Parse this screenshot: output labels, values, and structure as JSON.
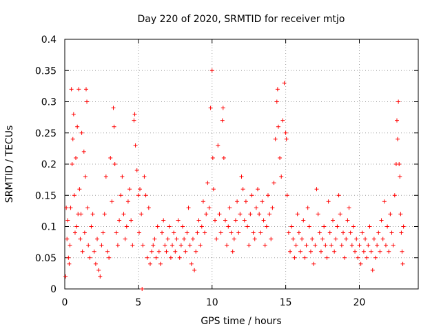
{
  "chart_data": {
    "type": "scatter",
    "title": "Day 220 of 2020, SRMTID for receiver mtjo",
    "xlabel": "GPS time / hours",
    "ylabel": "SRMTID / TECUs",
    "xlim": [
      0,
      24
    ],
    "ylim": [
      0,
      0.4
    ],
    "xticks": [
      0,
      5,
      10,
      15,
      20
    ],
    "yticks": [
      0,
      0.05,
      0.1,
      0.15,
      0.2,
      0.25,
      0.3,
      0.35,
      0.4
    ],
    "xtick_labels": [
      "0",
      "5",
      "10",
      "15",
      "20"
    ],
    "ytick_labels": [
      "0",
      "0.05",
      "0.1",
      "0.15",
      "0.2",
      "0.25",
      "0.3",
      "0.35",
      "0.4"
    ],
    "grid": true,
    "marker": "+",
    "color": "#ff0000",
    "series": [
      {
        "name": "SRMTID",
        "points": [
          [
            0.05,
            0.02
          ],
          [
            0.1,
            0.13
          ],
          [
            0.15,
            0.08
          ],
          [
            0.2,
            0.11
          ],
          [
            0.25,
            0.05
          ],
          [
            0.3,
            0.04
          ],
          [
            0.35,
            0.07
          ],
          [
            0.4,
            0.13
          ],
          [
            0.45,
            0.32
          ],
          [
            0.5,
            0.2
          ],
          [
            0.55,
            0.24
          ],
          [
            0.6,
            0.28
          ],
          [
            0.65,
            0.15
          ],
          [
            0.7,
            0.09
          ],
          [
            0.75,
            0.21
          ],
          [
            0.8,
            0.1
          ],
          [
            0.85,
            0.26
          ],
          [
            0.9,
            0.12
          ],
          [
            0.95,
            0.32
          ],
          [
            1.0,
            0.16
          ],
          [
            1.05,
            0.08
          ],
          [
            1.1,
            0.12
          ],
          [
            1.15,
            0.25
          ],
          [
            1.2,
            0.06
          ],
          [
            1.3,
            0.22
          ],
          [
            1.35,
            0.09
          ],
          [
            1.4,
            0.18
          ],
          [
            1.45,
            0.32
          ],
          [
            1.5,
            0.3
          ],
          [
            1.55,
            0.13
          ],
          [
            1.6,
            0.07
          ],
          [
            1.7,
            0.05
          ],
          [
            1.8,
            0.1
          ],
          [
            1.9,
            0.12
          ],
          [
            2.0,
            0.06
          ],
          [
            2.1,
            0.04
          ],
          [
            2.2,
            0.08
          ],
          [
            2.3,
            0.03
          ],
          [
            2.4,
            0.02
          ],
          [
            2.5,
            0.07
          ],
          [
            2.6,
            0.09
          ],
          [
            2.7,
            0.12
          ],
          [
            2.8,
            0.18
          ],
          [
            2.9,
            0.06
          ],
          [
            3.0,
            0.05
          ],
          [
            3.1,
            0.21
          ],
          [
            3.2,
            0.14
          ],
          [
            3.3,
            0.29
          ],
          [
            3.35,
            0.26
          ],
          [
            3.4,
            0.2
          ],
          [
            3.5,
            0.09
          ],
          [
            3.6,
            0.07
          ],
          [
            3.7,
            0.11
          ],
          [
            3.8,
            0.15
          ],
          [
            3.9,
            0.18
          ],
          [
            4.0,
            0.12
          ],
          [
            4.1,
            0.08
          ],
          [
            4.2,
            0.1
          ],
          [
            4.3,
            0.14
          ],
          [
            4.4,
            0.16
          ],
          [
            4.5,
            0.11
          ],
          [
            4.6,
            0.07
          ],
          [
            4.7,
            0.27
          ],
          [
            4.75,
            0.28
          ],
          [
            4.8,
            0.23
          ],
          [
            4.9,
            0.19
          ],
          [
            5.0,
            0.15
          ],
          [
            5.05,
            0.09
          ],
          [
            5.1,
            0.16
          ],
          [
            5.2,
            0.12
          ],
          [
            5.25,
            0.0
          ],
          [
            5.3,
            0.07
          ],
          [
            5.4,
            0.18
          ],
          [
            5.5,
            0.15
          ],
          [
            5.6,
            0.05
          ],
          [
            5.7,
            0.13
          ],
          [
            5.8,
            0.04
          ],
          [
            5.9,
            0.06
          ],
          [
            6.0,
            0.07
          ],
          [
            6.1,
            0.08
          ],
          [
            6.2,
            0.05
          ],
          [
            6.3,
            0.1
          ],
          [
            6.4,
            0.06
          ],
          [
            6.5,
            0.04
          ],
          [
            6.6,
            0.09
          ],
          [
            6.7,
            0.11
          ],
          [
            6.8,
            0.07
          ],
          [
            6.9,
            0.06
          ],
          [
            7.0,
            0.08
          ],
          [
            7.1,
            0.1
          ],
          [
            7.2,
            0.05
          ],
          [
            7.3,
            0.07
          ],
          [
            7.4,
            0.09
          ],
          [
            7.5,
            0.06
          ],
          [
            7.6,
            0.08
          ],
          [
            7.7,
            0.11
          ],
          [
            7.8,
            0.05
          ],
          [
            7.9,
            0.07
          ],
          [
            8.0,
            0.1
          ],
          [
            8.1,
            0.08
          ],
          [
            8.2,
            0.06
          ],
          [
            8.3,
            0.09
          ],
          [
            8.4,
            0.13
          ],
          [
            8.5,
            0.07
          ],
          [
            8.6,
            0.04
          ],
          [
            8.7,
            0.08
          ],
          [
            8.8,
            0.03
          ],
          [
            8.9,
            0.06
          ],
          [
            9.0,
            0.09
          ],
          [
            9.1,
            0.11
          ],
          [
            9.2,
            0.07
          ],
          [
            9.3,
            0.1
          ],
          [
            9.4,
            0.14
          ],
          [
            9.5,
            0.09
          ],
          [
            9.6,
            0.12
          ],
          [
            9.7,
            0.17
          ],
          [
            9.8,
            0.13
          ],
          [
            9.9,
            0.29
          ],
          [
            10.0,
            0.35
          ],
          [
            10.05,
            0.21
          ],
          [
            10.1,
            0.16
          ],
          [
            10.2,
            0.11
          ],
          [
            10.3,
            0.08
          ],
          [
            10.4,
            0.23
          ],
          [
            10.5,
            0.12
          ],
          [
            10.6,
            0.09
          ],
          [
            10.7,
            0.27
          ],
          [
            10.75,
            0.29
          ],
          [
            10.8,
            0.21
          ],
          [
            10.9,
            0.11
          ],
          [
            11.0,
            0.07
          ],
          [
            11.1,
            0.1
          ],
          [
            11.2,
            0.13
          ],
          [
            11.3,
            0.09
          ],
          [
            11.4,
            0.06
          ],
          [
            11.5,
            0.08
          ],
          [
            11.6,
            0.11
          ],
          [
            11.7,
            0.14
          ],
          [
            11.8,
            0.09
          ],
          [
            11.9,
            0.12
          ],
          [
            12.0,
            0.18
          ],
          [
            12.1,
            0.16
          ],
          [
            12.2,
            0.11
          ],
          [
            12.3,
            0.14
          ],
          [
            12.4,
            0.1
          ],
          [
            12.5,
            0.07
          ],
          [
            12.6,
            0.12
          ],
          [
            12.7,
            0.15
          ],
          [
            12.8,
            0.09
          ],
          [
            12.9,
            0.08
          ],
          [
            13.0,
            0.13
          ],
          [
            13.1,
            0.16
          ],
          [
            13.2,
            0.12
          ],
          [
            13.3,
            0.09
          ],
          [
            13.4,
            0.14
          ],
          [
            13.5,
            0.11
          ],
          [
            13.6,
            0.07
          ],
          [
            13.7,
            0.1
          ],
          [
            13.8,
            0.15
          ],
          [
            13.9,
            0.12
          ],
          [
            14.0,
            0.08
          ],
          [
            14.1,
            0.13
          ],
          [
            14.2,
            0.17
          ],
          [
            14.3,
            0.24
          ],
          [
            14.4,
            0.3
          ],
          [
            14.45,
            0.32
          ],
          [
            14.5,
            0.26
          ],
          [
            14.6,
            0.21
          ],
          [
            14.7,
            0.18
          ],
          [
            14.8,
            0.27
          ],
          [
            14.9,
            0.33
          ],
          [
            15.0,
            0.25
          ],
          [
            15.05,
            0.24
          ],
          [
            15.1,
            0.15
          ],
          [
            15.2,
            0.09
          ],
          [
            15.3,
            0.06
          ],
          [
            15.4,
            0.1
          ],
          [
            15.5,
            0.08
          ],
          [
            15.6,
            0.05
          ],
          [
            15.7,
            0.07
          ],
          [
            15.8,
            0.12
          ],
          [
            15.9,
            0.09
          ],
          [
            16.0,
            0.06
          ],
          [
            16.1,
            0.08
          ],
          [
            16.2,
            0.11
          ],
          [
            16.3,
            0.05
          ],
          [
            16.4,
            0.07
          ],
          [
            16.5,
            0.13
          ],
          [
            16.6,
            0.1
          ],
          [
            16.7,
            0.06
          ],
          [
            16.8,
            0.08
          ],
          [
            16.9,
            0.04
          ],
          [
            17.0,
            0.07
          ],
          [
            17.1,
            0.16
          ],
          [
            17.2,
            0.12
          ],
          [
            17.3,
            0.09
          ],
          [
            17.4,
            0.06
          ],
          [
            17.5,
            0.08
          ],
          [
            17.6,
            0.1
          ],
          [
            17.7,
            0.07
          ],
          [
            17.8,
            0.05
          ],
          [
            17.9,
            0.14
          ],
          [
            18.0,
            0.09
          ],
          [
            18.1,
            0.07
          ],
          [
            18.2,
            0.11
          ],
          [
            18.3,
            0.06
          ],
          [
            18.4,
            0.08
          ],
          [
            18.5,
            0.1
          ],
          [
            18.6,
            0.15
          ],
          [
            18.7,
            0.12
          ],
          [
            18.8,
            0.07
          ],
          [
            18.9,
            0.09
          ],
          [
            19.0,
            0.05
          ],
          [
            19.1,
            0.08
          ],
          [
            19.2,
            0.11
          ],
          [
            19.3,
            0.13
          ],
          [
            19.4,
            0.09
          ],
          [
            19.5,
            0.07
          ],
          [
            19.6,
            0.1
          ],
          [
            19.7,
            0.06
          ],
          [
            19.8,
            0.08
          ],
          [
            19.9,
            0.05
          ],
          [
            20.0,
            0.07
          ],
          [
            20.1,
            0.04
          ],
          [
            20.2,
            0.09
          ],
          [
            20.3,
            0.06
          ],
          [
            20.4,
            0.08
          ],
          [
            20.5,
            0.05
          ],
          [
            20.6,
            0.07
          ],
          [
            20.7,
            0.1
          ],
          [
            20.8,
            0.06
          ],
          [
            20.9,
            0.03
          ],
          [
            21.0,
            0.08
          ],
          [
            21.1,
            0.05
          ],
          [
            21.2,
            0.07
          ],
          [
            21.3,
            0.09
          ],
          [
            21.4,
            0.06
          ],
          [
            21.5,
            0.11
          ],
          [
            21.6,
            0.08
          ],
          [
            21.7,
            0.14
          ],
          [
            21.8,
            0.07
          ],
          [
            21.9,
            0.1
          ],
          [
            22.0,
            0.06
          ],
          [
            22.1,
            0.12
          ],
          [
            22.2,
            0.09
          ],
          [
            22.3,
            0.07
          ],
          [
            22.4,
            0.15
          ],
          [
            22.5,
            0.2
          ],
          [
            22.55,
            0.27
          ],
          [
            22.6,
            0.24
          ],
          [
            22.65,
            0.3
          ],
          [
            22.7,
            0.2
          ],
          [
            22.75,
            0.18
          ],
          [
            22.8,
            0.12
          ],
          [
            22.85,
            0.09
          ],
          [
            22.9,
            0.06
          ],
          [
            22.95,
            0.04
          ],
          [
            23.0,
            0.1
          ]
        ]
      }
    ]
  }
}
